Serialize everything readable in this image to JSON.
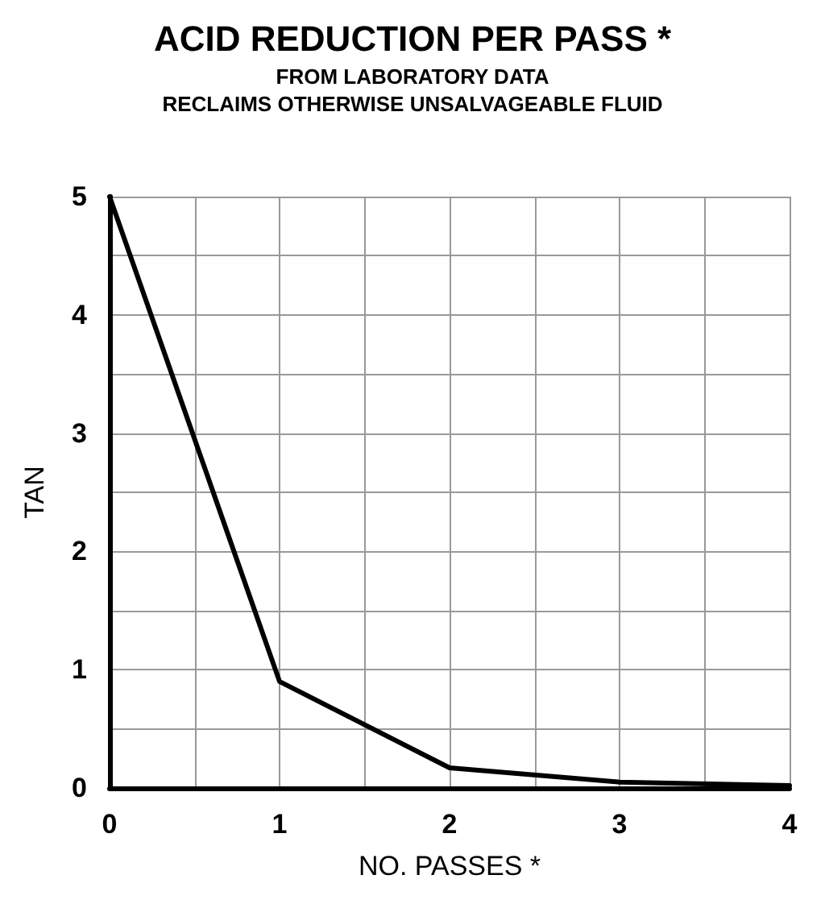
{
  "chart_data": {
    "type": "line",
    "title": "ACID REDUCTION PER PASS *",
    "subtitle": "FROM LABORATORY DATA\nRECLAIMS OTHERWISE UNSALVAGEABLE FLUID",
    "xlabel": "NO. PASSES *",
    "ylabel": "TAN",
    "x": [
      0,
      1,
      2,
      3,
      4
    ],
    "series": [
      {
        "color": "#000000",
        "values": [
          5,
          0.9,
          0.17,
          0.05,
          0.02
        ]
      }
    ],
    "xlim": [
      0,
      4
    ],
    "ylim": [
      0,
      5
    ],
    "xticks": [
      0,
      {
        "value": 0.5,
        "label": null
      },
      1,
      {
        "value": 1.5,
        "label": null
      },
      2,
      {
        "value": 2.5,
        "label": null
      },
      3,
      {
        "value": 3.5,
        "label": null
      },
      4
    ],
    "yticks": [
      0,
      {
        "value": 0.5,
        "label": null
      },
      1,
      {
        "value": 1.5,
        "label": null
      },
      2,
      {
        "value": 2.5,
        "label": null
      },
      3,
      {
        "value": 3.5,
        "label": null
      },
      4,
      {
        "value": 4.5,
        "label": null
      },
      5
    ],
    "grid": true,
    "marker": "none",
    "line_style": "solid"
  }
}
